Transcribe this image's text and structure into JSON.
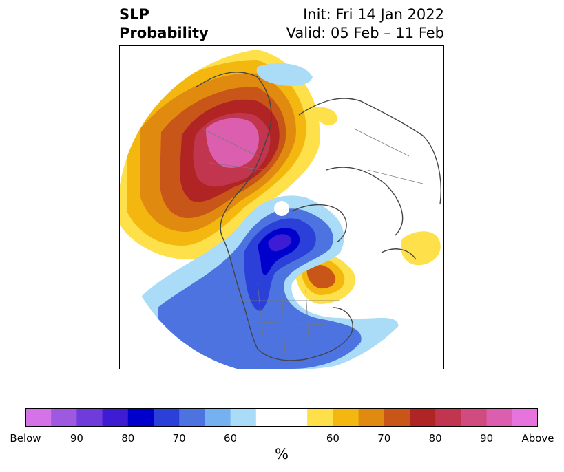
{
  "title": {
    "left_line1": "SLP",
    "left_line2": "Probability",
    "right_line1": "Init: Fri 14 Jan 2022",
    "right_line2": "Valid: 05 Feb – 11 Feb"
  },
  "colorbar": {
    "colors": [
      "#d672e8",
      "#9f58e0",
      "#6f3cdb",
      "#3d1cd4",
      "#0000cc",
      "#2a40d9",
      "#4d73e0",
      "#75b0f0",
      "#aadbf7",
      "#ffffff",
      "#ffffff",
      "#fde04a",
      "#f4b70f",
      "#e08a10",
      "#c85618",
      "#b02424",
      "#c2354e",
      "#cf4b80",
      "#db5fae",
      "#e674dc"
    ],
    "tick_labels": [
      "Below",
      "90",
      "80",
      "70",
      "60",
      "60",
      "70",
      "80",
      "90",
      "Above"
    ],
    "unit": "%"
  },
  "legend_scale": {
    "below": "Below",
    "above": "Above"
  }
}
